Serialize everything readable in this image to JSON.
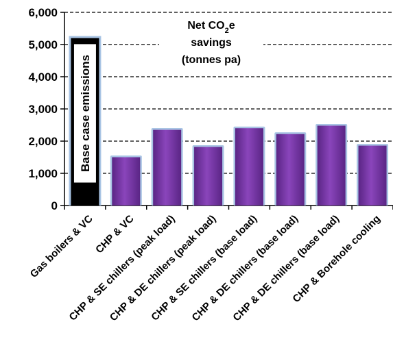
{
  "chart_data": {
    "type": "bar",
    "title_line1_pre": "Net CO",
    "title_line1_sub": "2",
    "title_line1_post": "e",
    "title_line2": "savings",
    "title_line3": "(tonnes pa)",
    "xlabel": "",
    "ylabel": "",
    "ylim": [
      0,
      6000
    ],
    "yticks": [
      0,
      1000,
      2000,
      3000,
      4000,
      5000,
      6000
    ],
    "ytick_labels": [
      "0",
      "1,000",
      "2,000",
      "3,000",
      "4,000",
      "5,000",
      "6,000"
    ],
    "grid": "horizontal-dashed",
    "categories": [
      "Gas boilers & VC",
      "CHP & VC",
      "CHP & SE chillers (peak load)",
      "CHP & DE chillers (peak load)",
      "CHP & SE chillers (base load)",
      "CHP & DE chillers (base load)",
      "CHP & DE chillers (base load)",
      "CHP & Borehole cooling"
    ],
    "values": [
      5200,
      1500,
      2350,
      1820,
      2400,
      2220,
      2480,
      1860
    ],
    "base_case_label": "Base case emissions",
    "colors": {
      "bar_fill": "#7030a0",
      "bar_fill_light": "#9b59c9",
      "bar_edge": "#a9c4e4",
      "base_case_fill": "#000000",
      "base_case_inner": "#ffffff",
      "grid": "#000000"
    }
  }
}
